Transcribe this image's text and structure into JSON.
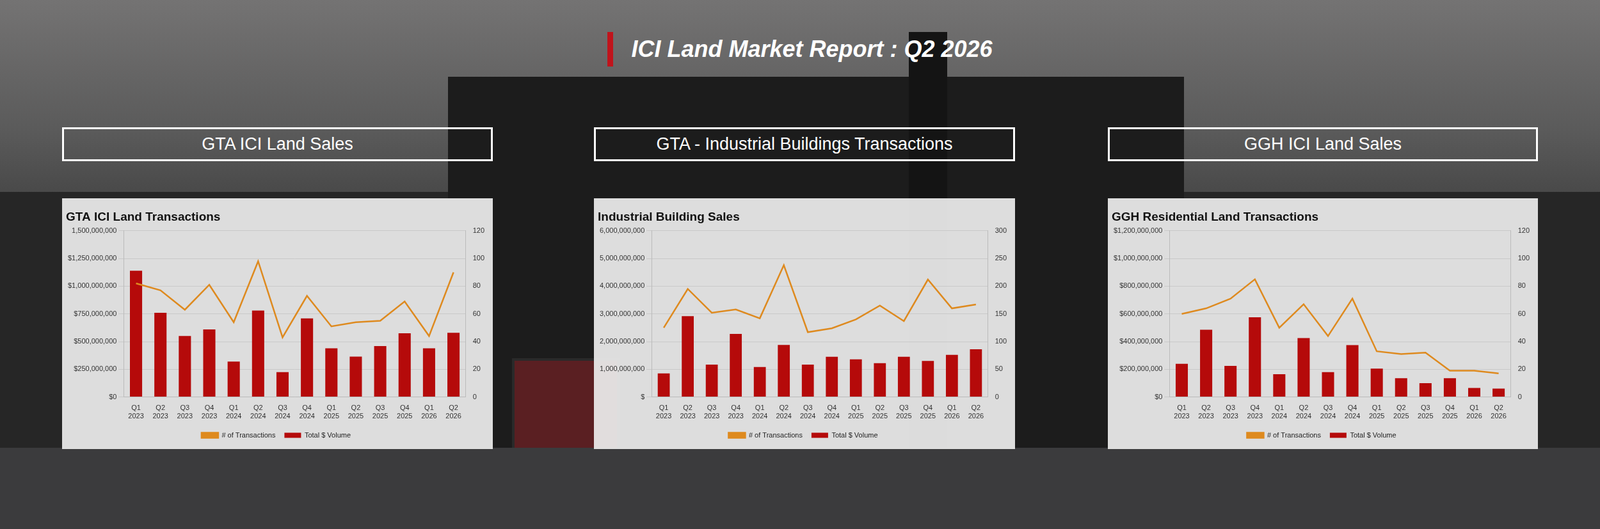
{
  "title": "ICI Land Market Report : Q2 2026",
  "headers": [
    "GTA ICI Land Sales",
    "GTA - Industrial Buildings Transactions",
    "GGH ICI Land Sales"
  ],
  "chart_data": [
    {
      "type": "bar",
      "title": "GTA ICI Land Transactions",
      "categories": [
        "Q1 2023",
        "Q2 2023",
        "Q3 2023",
        "Q4 2023",
        "Q1 2024",
        "Q2 2024",
        "Q3 2024",
        "Q4 2024",
        "Q1 2025",
        "Q2 2025",
        "Q3 2025",
        "Q4 2025",
        "Q1 2026",
        "Q2 2026"
      ],
      "series": [
        {
          "name": "Total $ Volume",
          "type": "bar",
          "color": "#b50a0a",
          "values": [
            1140000000,
            760000000,
            550000000,
            610000000,
            320000000,
            780000000,
            225000000,
            710000000,
            440000000,
            365000000,
            460000000,
            575000000,
            440000000,
            580000000
          ]
        },
        {
          "name": "# of Transactions",
          "type": "line",
          "color": "#de8a1f",
          "axis": "y2",
          "marker": "none",
          "values": [
            82,
            77,
            63,
            81,
            54,
            98,
            43,
            73,
            51,
            54,
            55,
            69,
            44,
            90
          ]
        }
      ],
      "ylim": [
        0,
        1500000000
      ],
      "yticks": [
        {
          "value": 0,
          "label": "$0"
        },
        {
          "value": 250000000,
          "label": "$250,000,000"
        },
        {
          "value": 500000000,
          "label": "$500,000,000"
        },
        {
          "value": 750000000,
          "label": "$750,000,000"
        },
        {
          "value": 1000000000,
          "label": "$1,000,000,000"
        },
        {
          "value": 1250000000,
          "label": "$1,250,000,000"
        },
        {
          "value": 1500000000,
          "label": "1,500,000,000"
        }
      ],
      "y2lim": [
        0,
        120
      ],
      "y2ticks": [
        0,
        20,
        40,
        60,
        80,
        100,
        120
      ],
      "grid": true,
      "legend": "bottom"
    },
    {
      "type": "bar",
      "title": "Industrial Building Sales",
      "categories": [
        "Q1 2023",
        "Q2 2023",
        "Q3 2023",
        "Q4 2023",
        "Q1 2024",
        "Q2 2024",
        "Q3 2024",
        "Q4 2024",
        "Q1 2025",
        "Q2 2025",
        "Q3 2025",
        "Q4 2025",
        "Q1 2026",
        "Q2 2026"
      ],
      "series": [
        {
          "name": "Total $ Volume",
          "type": "bar",
          "color": "#b50a0a",
          "values": [
            850000000,
            2920000000,
            1170000000,
            2280000000,
            1080000000,
            1880000000,
            1170000000,
            1450000000,
            1360000000,
            1220000000,
            1450000000,
            1300000000,
            1520000000,
            1720000000
          ]
        },
        {
          "name": "# of Transactions",
          "type": "line",
          "color": "#de8a1f",
          "axis": "y2",
          "marker": "none",
          "values": [
            125,
            195,
            152,
            158,
            142,
            238,
            117,
            124,
            140,
            165,
            137,
            212,
            160,
            167
          ]
        }
      ],
      "ylim": [
        0,
        6000000000
      ],
      "yticks": [
        {
          "value": 0,
          "label": "$"
        },
        {
          "value": 1000000000,
          "label": "1,000,000,000"
        },
        {
          "value": 2000000000,
          "label": "2,000,000,000"
        },
        {
          "value": 3000000000,
          "label": "3,000,000,000"
        },
        {
          "value": 4000000000,
          "label": "4,000,000,000"
        },
        {
          "value": 5000000000,
          "label": "5,000,000,000"
        },
        {
          "value": 6000000000,
          "label": "6,000,000,000"
        }
      ],
      "y2lim": [
        0,
        300
      ],
      "y2ticks": [
        0,
        50,
        100,
        150,
        200,
        250,
        300
      ],
      "grid": true,
      "legend": "bottom"
    },
    {
      "type": "bar",
      "title": "GGH Residential Land Transactions",
      "categories": [
        "Q1 2023",
        "Q2 2023",
        "Q3 2023",
        "Q4 2023",
        "Q1 2024",
        "Q2 2024",
        "Q3 2024",
        "Q4 2024",
        "Q1 2025",
        "Q2 2025",
        "Q3 2025",
        "Q4 2025",
        "Q1 2026",
        "Q2 2026"
      ],
      "series": [
        {
          "name": "Total $ Volume",
          "type": "bar",
          "color": "#b50a0a",
          "values": [
            240000000,
            485000000,
            225000000,
            575000000,
            165000000,
            425000000,
            180000000,
            375000000,
            205000000,
            135000000,
            100000000,
            135000000,
            65000000,
            60000000
          ]
        },
        {
          "name": "# of Transactions",
          "type": "line",
          "color": "#de8a1f",
          "axis": "y2",
          "marker": "none",
          "values": [
            60,
            64,
            71,
            85,
            50,
            67,
            44,
            71,
            33,
            31,
            32,
            19,
            19,
            17
          ]
        }
      ],
      "ylim": [
        0,
        1200000000
      ],
      "yticks": [
        {
          "value": 0,
          "label": "$0"
        },
        {
          "value": 200000000,
          "label": "$200,000,000"
        },
        {
          "value": 400000000,
          "label": "$400,000,000"
        },
        {
          "value": 600000000,
          "label": "$600,000,000"
        },
        {
          "value": 800000000,
          "label": "$800,000,000"
        },
        {
          "value": 1000000000,
          "label": "$1,000,000,000"
        },
        {
          "value": 1200000000,
          "label": "$1,200,000,000"
        }
      ],
      "y2lim": [
        0,
        120
      ],
      "y2ticks": [
        0,
        20,
        40,
        60,
        80,
        100,
        120
      ],
      "grid": true,
      "legend": "bottom"
    }
  ]
}
